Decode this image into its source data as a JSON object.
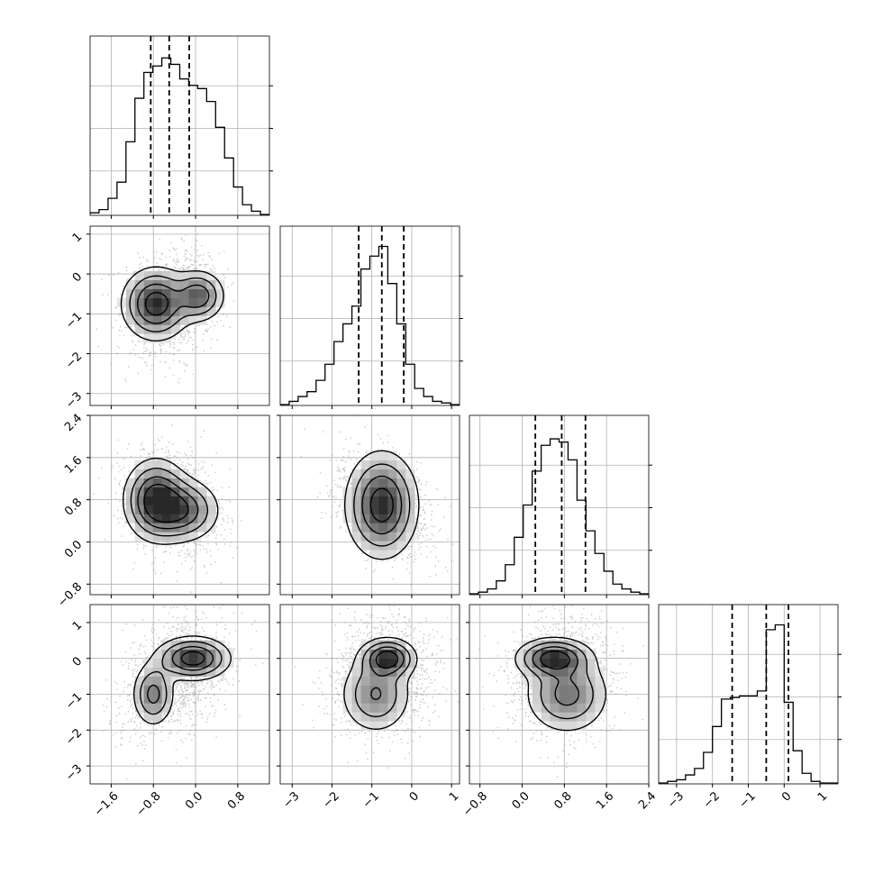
{
  "chart_data": {
    "type": "corner",
    "title": "",
    "n_params": 4,
    "grid": true,
    "contour_levels": 4,
    "params": [
      {
        "range": [
          -2.0,
          1.4
        ],
        "ticks": [
          -1.6,
          -0.8,
          0.0,
          0.8
        ],
        "tick_labels": [
          "−1.6",
          "−0.8",
          "0.0",
          "0.8"
        ],
        "quantiles": [
          -0.85,
          -0.5,
          -0.12
        ],
        "hist_bins": [
          0.01,
          0.03,
          0.1,
          0.2,
          0.45,
          0.72,
          0.88,
          0.92,
          0.97,
          0.93,
          0.84,
          0.8,
          0.78,
          0.7,
          0.54,
          0.35,
          0.17,
          0.06,
          0.02,
          0.0
        ]
      },
      {
        "range": [
          -3.3,
          1.2
        ],
        "ticks": [
          -3,
          -2,
          -1,
          0,
          1
        ],
        "tick_labels": [
          "−3",
          "−2",
          "−1",
          "0",
          "1"
        ],
        "quantiles": [
          -1.33,
          -0.75,
          -0.2
        ],
        "hist_bins": [
          0.0,
          0.02,
          0.05,
          0.08,
          0.15,
          0.25,
          0.39,
          0.5,
          0.61,
          0.84,
          0.92,
          0.98,
          0.75,
          0.5,
          0.25,
          0.1,
          0.05,
          0.02,
          0.01,
          0.0
        ]
      },
      {
        "range": [
          -1.0,
          2.4
        ],
        "ticks": [
          -0.8,
          0.0,
          0.8,
          1.6,
          2.4
        ],
        "tick_labels": [
          "−0.8",
          "0.0",
          "0.8",
          "1.6",
          "2.4"
        ],
        "quantiles": [
          0.25,
          0.75,
          1.2
        ],
        "hist_bins": [
          0.0,
          0.01,
          0.03,
          0.08,
          0.18,
          0.35,
          0.55,
          0.76,
          0.92,
          0.96,
          0.94,
          0.83,
          0.58,
          0.39,
          0.25,
          0.14,
          0.06,
          0.03,
          0.01,
          0.0
        ]
      },
      {
        "range": [
          -3.5,
          1.5
        ],
        "ticks": [
          -3,
          -2,
          -1,
          0,
          1
        ],
        "tick_labels": [
          "−3",
          "−2",
          "−1",
          "0",
          "1"
        ],
        "quantiles": [
          -1.45,
          -0.5,
          0.12
        ],
        "hist_bins": [
          0.0,
          0.01,
          0.02,
          0.05,
          0.09,
          0.19,
          0.35,
          0.52,
          0.53,
          0.54,
          0.54,
          0.57,
          0.95,
          0.98,
          0.5,
          0.2,
          0.06,
          0.01,
          0.0,
          0.0
        ]
      }
    ],
    "pairs": [
      {
        "x": 0,
        "y": 1,
        "peaks": [
          [
            -0.75,
            -0.75,
            0.32,
            0.45,
            0.6
          ],
          [
            0.05,
            -0.55,
            0.25,
            0.32,
            0.45
          ]
        ],
        "scatter_sd": [
          0.45,
          0.62
        ],
        "scatter_mean": [
          -0.45,
          -0.7
        ],
        "rho": 0.2
      },
      {
        "x": 0,
        "y": 2,
        "peaks": [
          [
            -0.75,
            0.8,
            0.3,
            0.38,
            0.6
          ],
          [
            -0.25,
            0.6,
            0.35,
            0.3,
            0.45
          ]
        ],
        "scatter_sd": [
          0.45,
          0.48
        ],
        "scatter_mean": [
          -0.45,
          0.72
        ],
        "rho": -0.2
      },
      {
        "x": 1,
        "y": 2,
        "peaks": [
          [
            -0.75,
            0.7,
            0.45,
            0.5,
            0.8
          ]
        ],
        "scatter_sd": [
          0.6,
          0.5
        ],
        "scatter_mean": [
          -0.75,
          0.7
        ],
        "rho": -0.4
      },
      {
        "x": 0,
        "y": 3,
        "peaks": [
          [
            -0.05,
            0.0,
            0.35,
            0.3,
            0.7
          ],
          [
            -0.8,
            -1.0,
            0.2,
            0.45,
            0.45
          ]
        ],
        "scatter_sd": [
          0.5,
          0.8
        ],
        "scatter_mean": [
          -0.4,
          -0.5
        ],
        "rho": 0.35
      },
      {
        "x": 1,
        "y": 3,
        "peaks": [
          [
            -0.6,
            0.0,
            0.35,
            0.28,
            0.7
          ],
          [
            -0.9,
            -1.0,
            0.45,
            0.55,
            0.4
          ]
        ],
        "scatter_sd": [
          0.65,
          0.8
        ],
        "scatter_mean": [
          -0.75,
          -0.5
        ],
        "rho": 0.1
      },
      {
        "x": 2,
        "y": 3,
        "peaks": [
          [
            0.6,
            0.0,
            0.35,
            0.28,
            0.7
          ],
          [
            0.85,
            -1.0,
            0.4,
            0.55,
            0.45
          ]
        ],
        "scatter_sd": [
          0.5,
          0.8
        ],
        "scatter_mean": [
          0.75,
          -0.5
        ],
        "rho": 0.0
      }
    ]
  }
}
